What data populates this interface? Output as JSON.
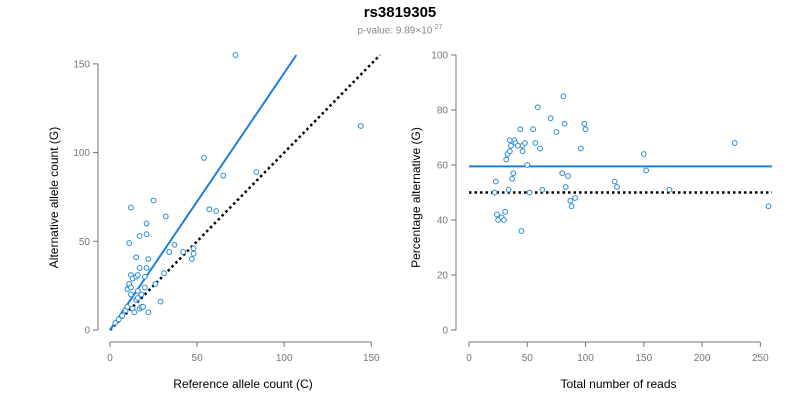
{
  "title": "rs3819305",
  "subtitle": {
    "prefix": "p-value: 9.89×10",
    "exponent": "-27"
  },
  "colors": {
    "points": "#2b8bd6",
    "fit_line": "#1e7fd9",
    "reference_line": "#000000",
    "axis": "#777777"
  },
  "chart_data": [
    {
      "type": "scatter",
      "xlabel": "Reference allele count (C)",
      "ylabel": "Alternative allele count (G)",
      "xlim": [
        0,
        155
      ],
      "ylim": [
        0,
        155
      ],
      "xticks": [
        0,
        50,
        100,
        150
      ],
      "yticks": [
        0,
        50,
        100,
        150
      ],
      "points": [
        [
          3,
          4
        ],
        [
          5,
          6
        ],
        [
          7,
          8
        ],
        [
          9,
          11
        ],
        [
          10,
          13
        ],
        [
          10,
          23
        ],
        [
          11,
          25
        ],
        [
          11,
          26
        ],
        [
          12,
          20
        ],
        [
          12,
          24
        ],
        [
          12,
          31
        ],
        [
          11,
          49
        ],
        [
          12,
          69
        ],
        [
          13,
          12
        ],
        [
          13,
          29
        ],
        [
          14,
          10
        ],
        [
          15,
          30
        ],
        [
          15,
          41
        ],
        [
          15,
          17
        ],
        [
          16,
          18
        ],
        [
          16,
          22
        ],
        [
          16,
          31
        ],
        [
          17,
          12
        ],
        [
          17,
          35
        ],
        [
          17,
          53
        ],
        [
          18,
          13
        ],
        [
          18,
          20
        ],
        [
          19,
          13
        ],
        [
          20,
          30
        ],
        [
          20,
          24
        ],
        [
          21,
          35
        ],
        [
          21,
          54
        ],
        [
          21,
          60
        ],
        [
          22,
          40
        ],
        [
          22,
          10
        ],
        [
          25,
          73
        ],
        [
          26,
          26
        ],
        [
          29,
          16
        ],
        [
          31,
          32
        ],
        [
          32,
          64
        ],
        [
          34,
          44
        ],
        [
          37,
          48
        ],
        [
          42,
          44
        ],
        [
          47,
          40
        ],
        [
          48,
          43
        ],
        [
          48,
          46
        ],
        [
          54,
          97
        ],
        [
          57,
          68
        ],
        [
          61,
          67
        ],
        [
          65,
          87
        ],
        [
          72,
          155
        ],
        [
          84,
          89
        ],
        [
          144,
          115
        ]
      ],
      "fit_line": {
        "x": [
          0,
          107
        ],
        "y": [
          0,
          155
        ]
      },
      "reference_line": {
        "x": [
          0,
          155
        ],
        "y": [
          0,
          155
        ]
      }
    },
    {
      "type": "scatter",
      "xlabel": "Total number of reads",
      "ylabel": "Percentage alternative (G)",
      "xlim": [
        0,
        260
      ],
      "ylim": [
        0,
        100
      ],
      "xticks": [
        0,
        50,
        100,
        150,
        200,
        250
      ],
      "yticks": [
        0,
        20,
        40,
        60,
        80,
        100
      ],
      "points": [
        [
          22,
          50
        ],
        [
          23,
          54
        ],
        [
          24,
          42
        ],
        [
          25,
          40
        ],
        [
          28,
          41
        ],
        [
          30,
          40
        ],
        [
          31,
          43
        ],
        [
          32,
          62
        ],
        [
          33,
          64
        ],
        [
          34,
          51
        ],
        [
          35,
          65
        ],
        [
          35,
          69
        ],
        [
          36,
          67
        ],
        [
          37,
          55
        ],
        [
          38,
          57
        ],
        [
          39,
          69
        ],
        [
          40,
          68
        ],
        [
          42,
          67
        ],
        [
          44,
          73
        ],
        [
          45,
          36
        ],
        [
          46,
          65
        ],
        [
          46,
          67
        ],
        [
          48,
          68
        ],
        [
          50,
          60
        ],
        [
          52,
          50
        ],
        [
          55,
          73
        ],
        [
          57,
          68
        ],
        [
          59,
          81
        ],
        [
          61,
          66
        ],
        [
          63,
          51
        ],
        [
          70,
          77
        ],
        [
          75,
          72
        ],
        [
          80,
          57
        ],
        [
          81,
          85
        ],
        [
          82,
          75
        ],
        [
          83,
          52
        ],
        [
          85,
          56
        ],
        [
          87,
          47
        ],
        [
          88,
          45
        ],
        [
          91,
          48
        ],
        [
          96,
          66
        ],
        [
          99,
          75
        ],
        [
          100,
          73
        ],
        [
          125,
          54
        ],
        [
          127,
          52
        ],
        [
          150,
          64
        ],
        [
          152,
          58
        ],
        [
          172,
          51
        ],
        [
          228,
          68
        ],
        [
          257,
          45
        ]
      ],
      "fit_line": {
        "x": [
          0,
          260
        ],
        "y": [
          59.5,
          59.5
        ]
      },
      "reference_line": {
        "x": [
          0,
          260
        ],
        "y": [
          50,
          50
        ]
      }
    }
  ]
}
